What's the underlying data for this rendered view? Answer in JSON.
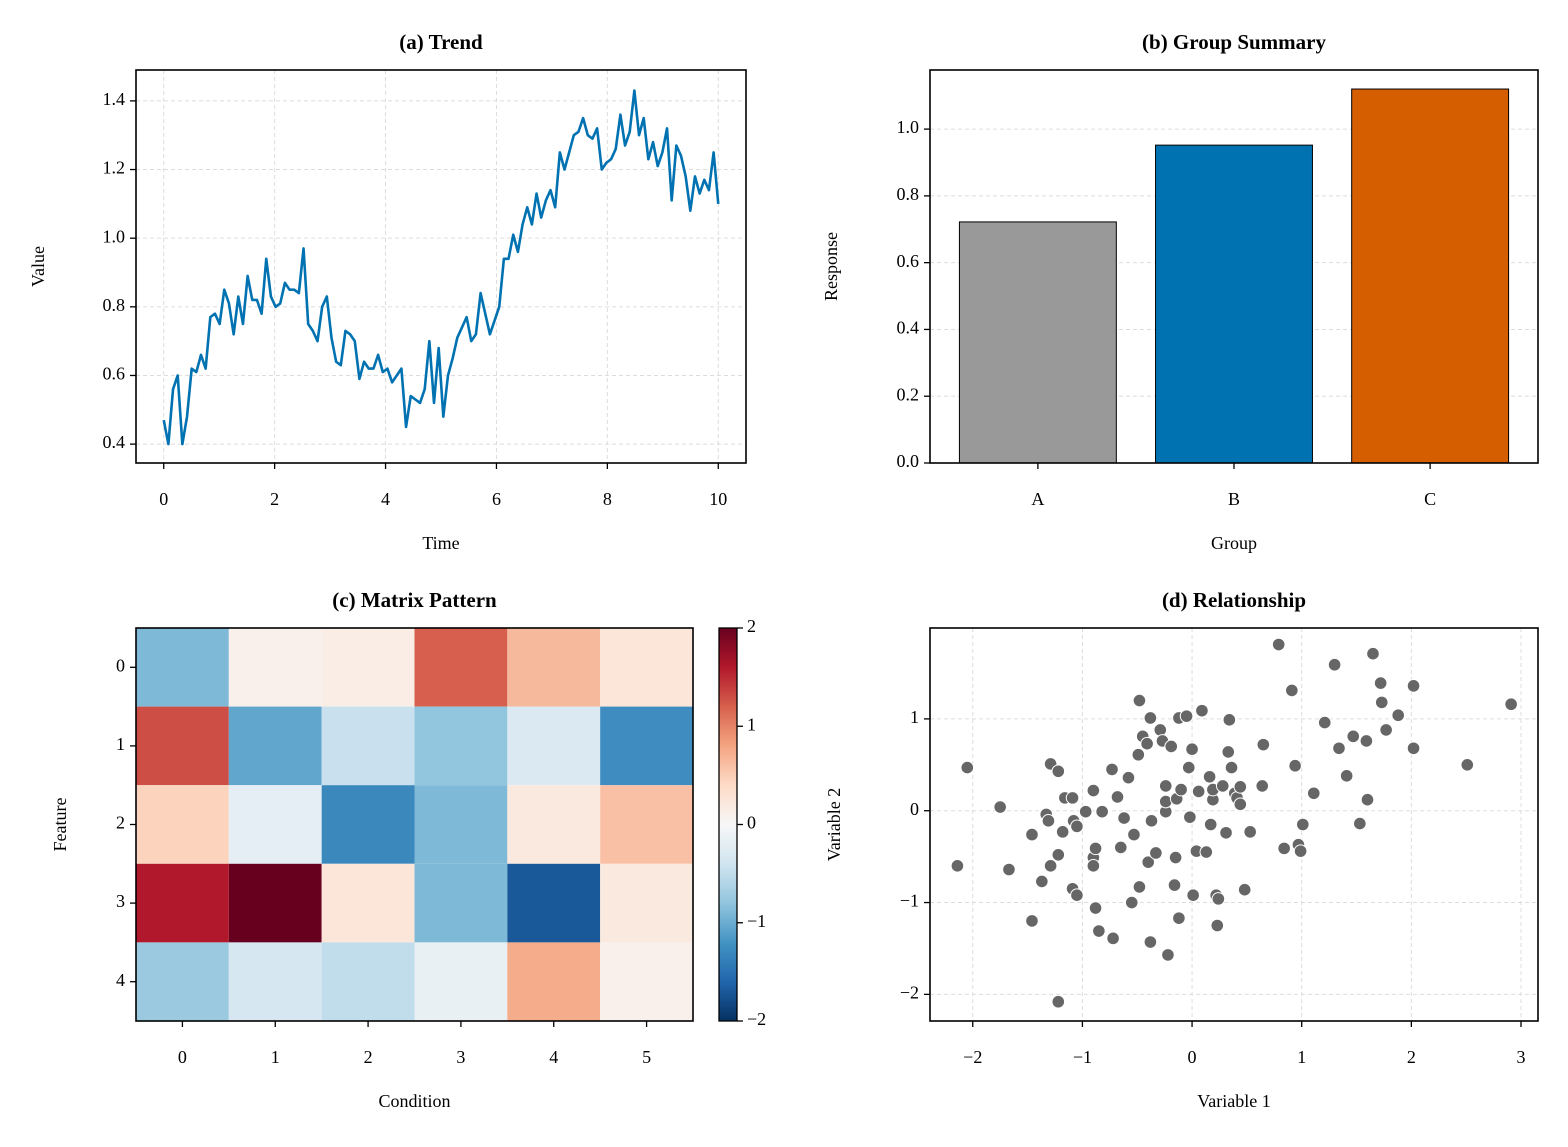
{
  "chart_data": [
    {
      "type": "line",
      "title": "(a) Trend",
      "xlabel": "Time",
      "ylabel": "Value",
      "color": "#0072b2",
      "grid": true,
      "xlim": [
        -0.5,
        10.5
      ],
      "ylim": [
        0.345,
        1.49
      ],
      "xticks": [
        0,
        2,
        4,
        6,
        8,
        10
      ],
      "yticks": [
        0.4,
        0.6,
        0.8,
        {
          "value": 1,
          "label": "1.0"
        },
        1.2,
        1.4
      ],
      "x": [
        0,
        0.084,
        0.168,
        0.252,
        0.336,
        0.42,
        0.504,
        0.588,
        0.672,
        0.756,
        0.84,
        0.924,
        1.008,
        1.092,
        1.176,
        1.261,
        1.345,
        1.429,
        1.513,
        1.597,
        1.681,
        1.765,
        1.849,
        1.933,
        2.017,
        2.101,
        2.185,
        2.269,
        2.353,
        2.437,
        2.521,
        2.605,
        2.689,
        2.773,
        2.857,
        2.941,
        3.025,
        3.109,
        3.193,
        3.277,
        3.361,
        3.445,
        3.529,
        3.613,
        3.697,
        3.782,
        3.866,
        3.95,
        4.034,
        4.118,
        4.202,
        4.286,
        4.37,
        4.454,
        4.538,
        4.622,
        4.706,
        4.79,
        4.874,
        4.958,
        5.042,
        5.126,
        5.21,
        5.294,
        5.378,
        5.462,
        5.546,
        5.63,
        5.714,
        5.798,
        5.882,
        5.966,
        6.05,
        6.134,
        6.218,
        6.303,
        6.387,
        6.471,
        6.555,
        6.639,
        6.723,
        6.807,
        6.891,
        6.975,
        7.059,
        7.143,
        7.227,
        7.311,
        7.395,
        7.479,
        7.563,
        7.647,
        7.731,
        7.815,
        7.899,
        7.983,
        8.067,
        8.151,
        8.235,
        8.319,
        8.403,
        8.487,
        8.571,
        8.655,
        8.739,
        8.824,
        8.908,
        8.992,
        9.076,
        9.16,
        9.244,
        9.328,
        9.412,
        9.496,
        9.58,
        9.664,
        9.748,
        9.832,
        9.916,
        10
      ],
      "values": [
        0.47,
        0.4,
        0.56,
        0.6,
        0.4,
        0.48,
        0.62,
        0.61,
        0.66,
        0.62,
        0.77,
        0.78,
        0.75,
        0.85,
        0.81,
        0.72,
        0.83,
        0.75,
        0.89,
        0.82,
        0.82,
        0.78,
        0.94,
        0.83,
        0.8,
        0.81,
        0.87,
        0.85,
        0.85,
        0.84,
        0.97,
        0.75,
        0.73,
        0.7,
        0.8,
        0.83,
        0.71,
        0.64,
        0.63,
        0.73,
        0.72,
        0.7,
        0.59,
        0.64,
        0.62,
        0.62,
        0.66,
        0.61,
        0.62,
        0.58,
        0.6,
        0.62,
        0.45,
        0.54,
        0.53,
        0.52,
        0.56,
        0.7,
        0.52,
        0.68,
        0.48,
        0.6,
        0.65,
        0.71,
        0.74,
        0.77,
        0.7,
        0.72,
        0.84,
        0.78,
        0.72,
        0.76,
        0.8,
        0.94,
        0.94,
        1.01,
        0.96,
        1.04,
        1.09,
        1.04,
        1.13,
        1.06,
        1.11,
        1.14,
        1.09,
        1.25,
        1.2,
        1.25,
        1.3,
        1.31,
        1.35,
        1.3,
        1.29,
        1.32,
        1.2,
        1.22,
        1.23,
        1.26,
        1.36,
        1.27,
        1.31,
        1.43,
        1.3,
        1.35,
        1.23,
        1.28,
        1.21,
        1.25,
        1.32,
        1.11,
        1.27,
        1.24,
        1.18,
        1.08,
        1.18,
        1.13,
        1.17,
        1.14,
        1.25,
        1.1
      ]
    },
    {
      "type": "bar",
      "title": "(b) Group Summary",
      "xlabel": "Group",
      "ylabel": "Response",
      "grid": "y",
      "categories": [
        "A",
        "B",
        "C"
      ],
      "values": [
        0.722,
        0.952,
        1.12
      ],
      "colors": [
        "#999999",
        "#0072b2",
        "#d55e00"
      ],
      "ylim": [
        0,
        1.177
      ],
      "yticks": [
        {
          "value": 0,
          "label": "0.0"
        },
        0.2,
        0.4,
        0.6,
        0.8,
        {
          "value": 1,
          "label": "1.0"
        }
      ]
    },
    {
      "type": "heatmap",
      "title": "(c) Matrix Pattern",
      "xlabel": "Condition",
      "ylabel": "Feature",
      "xlim": [
        -0.5,
        5.5
      ],
      "ylim": [
        4.5,
        -0.5
      ],
      "xticks": [
        0,
        1,
        2,
        3,
        4,
        5
      ],
      "yticks": [
        0,
        1,
        2,
        3,
        4
      ],
      "colormap": "RdBu_r",
      "clim": [
        -2,
        2
      ],
      "cticks": [
        {
          "value": -2,
          "label": "−2"
        },
        {
          "value": -1,
          "label": "−1"
        },
        0,
        1,
        2
      ],
      "values": [
        [
          -0.9,
          0.1,
          0.15,
          1.2,
          0.65,
          0.25
        ],
        [
          1.3,
          -1.05,
          -0.45,
          -0.8,
          -0.3,
          -1.25
        ],
        [
          0.45,
          -0.2,
          -1.3,
          -0.9,
          0.2,
          0.6
        ],
        [
          1.6,
          2.0,
          0.25,
          -0.9,
          -1.7,
          0.2
        ],
        [
          -0.75,
          -0.35,
          -0.5,
          -0.15,
          0.75,
          0.1
        ]
      ]
    },
    {
      "type": "scatter",
      "title": "(d) Relationship",
      "xlabel": "Variable 1",
      "ylabel": "Variable 2",
      "color": "#666666",
      "grid": true,
      "xlim": [
        -2.39,
        3.155
      ],
      "ylim": [
        -2.29,
        1.99
      ],
      "xticks": [
        {
          "value": -2,
          "label": "−2"
        },
        {
          "value": -1,
          "label": "−1"
        },
        0,
        1,
        2,
        3
      ],
      "yticks": [
        {
          "value": -2,
          "label": "−2"
        },
        {
          "value": -1,
          "label": "−1"
        },
        0,
        1
      ],
      "x": [
        -2.14,
        -2.05,
        -1.75,
        -1.67,
        -1.29,
        -1.22,
        -1.46,
        -1.46,
        -1.37,
        -1.33,
        -1.31,
        -1.29,
        -1.22,
        -1.18,
        -1.16,
        -1.09,
        -1.08,
        -1.05,
        -1.09,
        -1.05,
        -1.22,
        -0.97,
        -0.9,
        -0.9,
        -0.9,
        -0.88,
        -0.88,
        -0.85,
        -0.82,
        -0.73,
        -0.72,
        -0.68,
        -0.65,
        -0.62,
        -0.58,
        -0.55,
        -0.53,
        -0.49,
        -0.48,
        -0.48,
        -0.45,
        -0.41,
        -0.38,
        -0.4,
        -0.38,
        -0.37,
        -0.33,
        -0.29,
        -0.27,
        -0.24,
        -0.24,
        -0.24,
        -0.22,
        -0.19,
        -0.16,
        -0.15,
        -0.14,
        -0.12,
        -0.12,
        -0.1,
        -0.05,
        -0.03,
        -0.02,
        0.0,
        0.01,
        0.04,
        0.06,
        0.09,
        0.13,
        0.16,
        0.17,
        0.19,
        0.19,
        0.22,
        0.24,
        0.23,
        0.28,
        0.31,
        0.33,
        0.34,
        0.36,
        0.39,
        0.41,
        0.44,
        0.44,
        0.48,
        0.53,
        0.64,
        0.65,
        0.79,
        0.84,
        0.91,
        0.94,
        0.97,
        0.99,
        1.01,
        1.11,
        1.21,
        1.3,
        1.34,
        1.41,
        1.47,
        1.53,
        1.59,
        1.65,
        1.72,
        1.73,
        1.77,
        1.6,
        1.88,
        2.02,
        2.02,
        2.51,
        2.91
      ],
      "y": [
        -0.6,
        0.47,
        0.04,
        -0.64,
        0.51,
        0.43,
        -0.26,
        -1.2,
        -0.77,
        -0.04,
        -0.11,
        -0.6,
        -0.48,
        -0.23,
        0.14,
        0.14,
        -0.11,
        -0.17,
        -0.85,
        -0.92,
        -2.08,
        -0.01,
        0.22,
        -0.51,
        -0.6,
        -0.41,
        -1.06,
        -1.31,
        -0.01,
        0.45,
        -1.39,
        0.15,
        -0.4,
        -0.08,
        0.36,
        -1.0,
        -0.26,
        0.61,
        -0.83,
        1.2,
        0.81,
        0.73,
        1.01,
        -0.56,
        -1.43,
        -0.11,
        -0.46,
        0.88,
        0.76,
        -0.01,
        0.27,
        0.1,
        -1.57,
        0.7,
        -0.81,
        -0.51,
        0.13,
        1.01,
        -1.17,
        0.23,
        1.03,
        0.47,
        -0.07,
        0.67,
        -0.92,
        -0.44,
        0.21,
        1.09,
        -0.45,
        0.37,
        -0.15,
        0.12,
        0.23,
        -0.92,
        -0.96,
        -1.25,
        0.27,
        -0.24,
        0.64,
        0.99,
        0.47,
        0.19,
        0.14,
        0.26,
        0.07,
        -0.86,
        -0.23,
        0.27,
        0.72,
        1.81,
        -0.41,
        1.31,
        0.49,
        -0.37,
        -0.44,
        -0.15,
        0.19,
        0.96,
        1.59,
        0.68,
        0.38,
        0.81,
        -0.14,
        0.76,
        1.71,
        1.39,
        1.18,
        0.88,
        0.12,
        1.04,
        1.36,
        0.68,
        0.5,
        1.16
      ]
    }
  ]
}
